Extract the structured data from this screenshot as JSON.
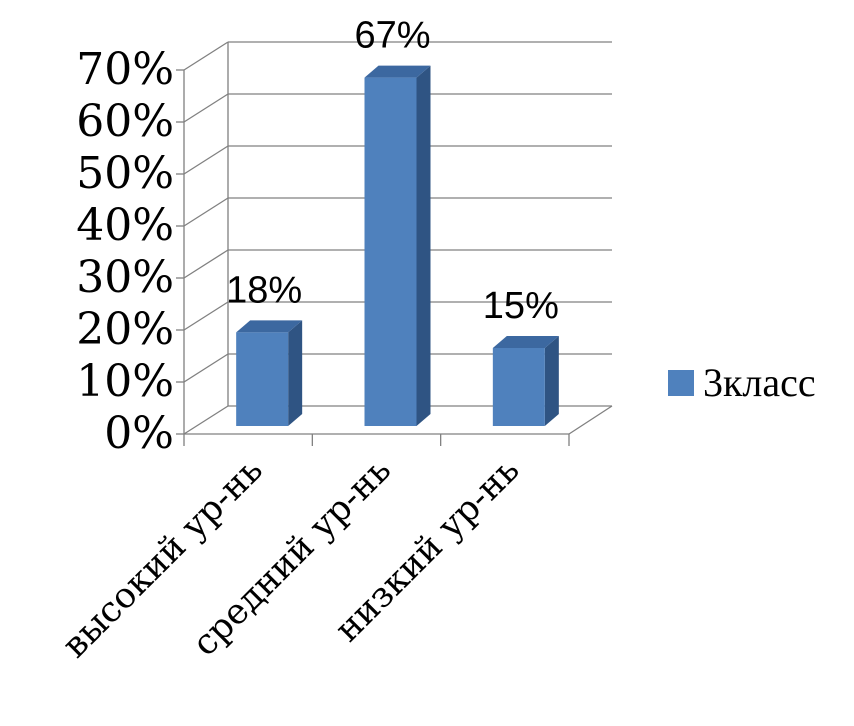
{
  "chart_data": {
    "type": "bar",
    "categories": [
      "высокий ур-нь",
      "средний ур-нь",
      "низкий ур-нь"
    ],
    "series": [
      {
        "name": "3класс",
        "values": [
          18,
          67,
          15
        ]
      }
    ],
    "data_labels": [
      "18%",
      "67%",
      "15%"
    ],
    "y_ticks": [
      "0%",
      "10%",
      "20%",
      "30%",
      "40%",
      "50%",
      "60%",
      "70%"
    ],
    "ylim": [
      0,
      70
    ],
    "grid": true,
    "legend": "right",
    "colors": {
      "bar_front": "#4f81bd",
      "bar_side": "#2f5483",
      "bar_top": "#3c68a0",
      "grid": "#808080"
    }
  }
}
